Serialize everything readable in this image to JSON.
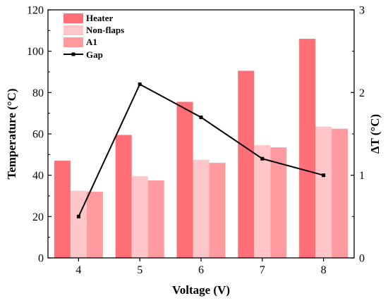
{
  "chart_data": {
    "type": "bar",
    "categories": [
      "4",
      "5",
      "6",
      "7",
      "8"
    ],
    "series": [
      {
        "name": "Heater",
        "values": [
          47,
          59.5,
          75.5,
          90.5,
          106
        ],
        "color": "#ff6f75",
        "axis": "left"
      },
      {
        "name": "Non-flaps",
        "values": [
          32.5,
          39.5,
          47.5,
          54.5,
          63.5
        ],
        "color": "#ffc6c9",
        "axis": "left"
      },
      {
        "name": "A1",
        "values": [
          32,
          37.5,
          46,
          53.5,
          62.5
        ],
        "color": "#ff9b9f",
        "axis": "left"
      }
    ],
    "line_series": {
      "name": "Gap",
      "type": "line",
      "axis": "right",
      "color": "#000000",
      "values": [
        0.5,
        2.1,
        1.7,
        1.2,
        1.0
      ]
    },
    "xlabel": "Voltage (V)",
    "ylabel": "Temperature (°C)",
    "ylabel_right": "ΔT (°C)",
    "ylim": [
      0,
      120
    ],
    "ylim_right": [
      0,
      3
    ],
    "yticks": [
      "0",
      "20",
      "40",
      "60",
      "80",
      "100",
      "120"
    ],
    "yticks_right": [
      "0",
      "1",
      "2",
      "3"
    ],
    "legend_position": "top-left",
    "grid": false
  }
}
